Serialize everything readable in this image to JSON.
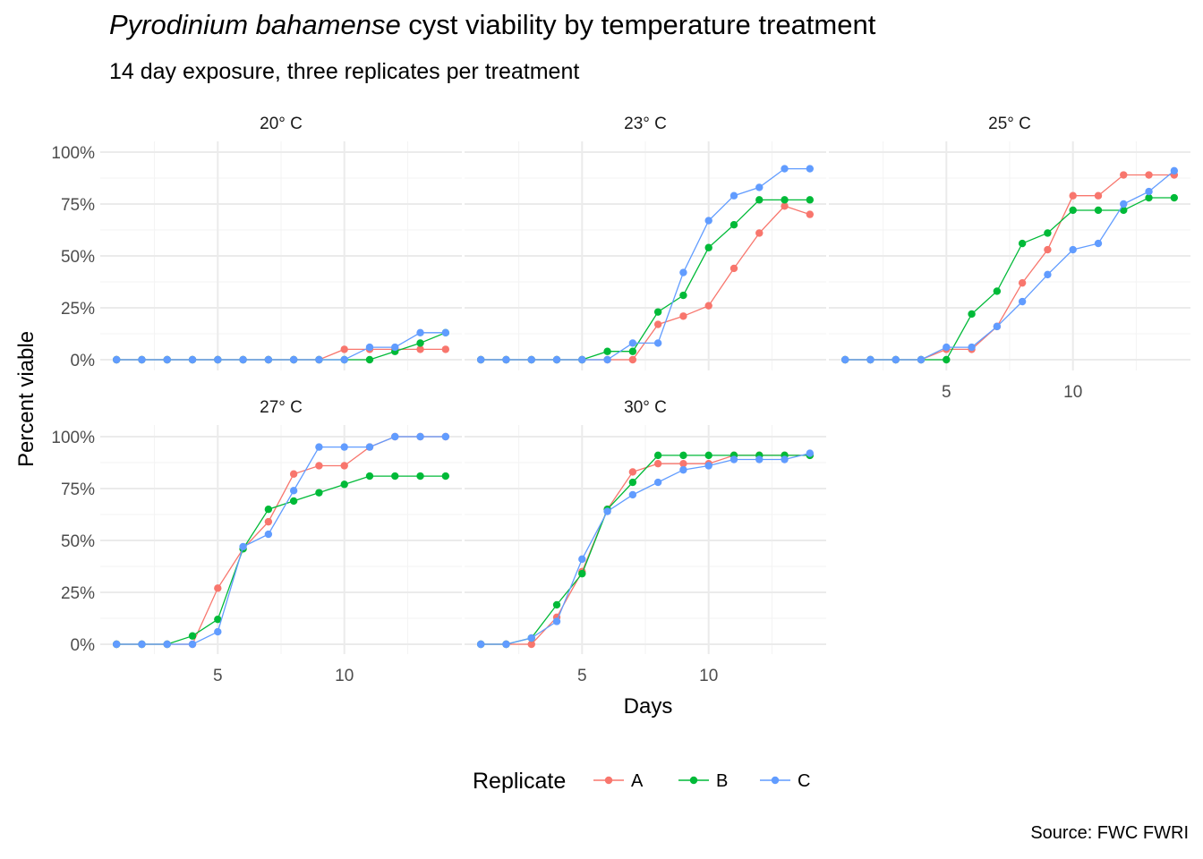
{
  "title": {
    "italic": "Pyrodinium bahamense",
    "rest": " cyst viability by temperature treatment"
  },
  "subtitle": "14 day exposure, three replicates per treatment",
  "caption": "Source: FWC FWRI",
  "chart_data": {
    "type": "line",
    "facet_by": "temperature",
    "xlabel": "Days",
    "ylabel": "Percent viable",
    "xlim": [
      1,
      14
    ],
    "ylim": [
      0,
      1
    ],
    "x_ticks": [
      5,
      10
    ],
    "y_ticks": [
      0,
      0.25,
      0.5,
      0.75,
      1.0
    ],
    "y_tick_labels": [
      "0%",
      "25%",
      "50%",
      "75%",
      "100%"
    ],
    "grid": true,
    "legend": {
      "title": "Replicate",
      "position": "bottom",
      "entries": [
        "A",
        "B",
        "C"
      ]
    },
    "colors": {
      "A": "#F8766D",
      "B": "#00BA38",
      "C": "#619CFF"
    },
    "x": [
      1,
      2,
      3,
      4,
      5,
      6,
      7,
      8,
      9,
      10,
      11,
      12,
      13,
      14
    ],
    "panels": [
      {
        "label": "20° C",
        "series": [
          {
            "name": "A",
            "values": [
              0,
              0,
              0,
              0,
              0,
              0,
              0,
              0,
              0,
              0.05,
              0.05,
              0.05,
              0.05,
              0.05
            ]
          },
          {
            "name": "B",
            "values": [
              0,
              0,
              0,
              0,
              0,
              0,
              0,
              0,
              0,
              0,
              0,
              0.04,
              0.08,
              0.13
            ]
          },
          {
            "name": "C",
            "values": [
              0,
              0,
              0,
              0,
              0,
              0,
              0,
              0,
              0,
              0,
              0.06,
              0.06,
              0.13,
              0.13
            ]
          }
        ]
      },
      {
        "label": "23° C",
        "series": [
          {
            "name": "A",
            "values": [
              0,
              0,
              0,
              0,
              0,
              0,
              0,
              0.17,
              0.21,
              0.26,
              0.44,
              0.61,
              0.74,
              0.7
            ]
          },
          {
            "name": "B",
            "values": [
              0,
              0,
              0,
              0,
              0,
              0.04,
              0.04,
              0.23,
              0.31,
              0.54,
              0.65,
              0.77,
              0.77,
              0.77
            ]
          },
          {
            "name": "C",
            "values": [
              0,
              0,
              0,
              0,
              0,
              0,
              0.08,
              0.08,
              0.42,
              0.67,
              0.79,
              0.83,
              0.92,
              0.92
            ]
          }
        ]
      },
      {
        "label": "25° C",
        "series": [
          {
            "name": "A",
            "values": [
              0,
              0,
              0,
              0,
              0.05,
              0.05,
              0.16,
              0.37,
              0.53,
              0.79,
              0.79,
              0.89,
              0.89,
              0.89
            ]
          },
          {
            "name": "B",
            "values": [
              0,
              0,
              0,
              0,
              0,
              0.22,
              0.33,
              0.56,
              0.61,
              0.72,
              0.72,
              0.72,
              0.78,
              0.78
            ]
          },
          {
            "name": "C",
            "values": [
              0,
              0,
              0,
              0,
              0.06,
              0.06,
              0.16,
              0.28,
              0.41,
              0.53,
              0.56,
              0.75,
              0.81,
              0.91
            ]
          }
        ]
      },
      {
        "label": "27° C",
        "series": [
          {
            "name": "A",
            "values": [
              0,
              0,
              0,
              0,
              0.27,
              0.46,
              0.59,
              0.82,
              0.86,
              0.86,
              0.95,
              1.0,
              1.0,
              1.0
            ]
          },
          {
            "name": "B",
            "values": [
              0,
              0,
              0,
              0.04,
              0.12,
              0.46,
              0.65,
              0.69,
              0.73,
              0.77,
              0.81,
              0.81,
              0.81,
              0.81
            ]
          },
          {
            "name": "C",
            "values": [
              0,
              0,
              0,
              0,
              0.06,
              0.47,
              0.53,
              0.74,
              0.95,
              0.95,
              0.95,
              1.0,
              1.0,
              1.0
            ]
          }
        ]
      },
      {
        "label": "30° C",
        "series": [
          {
            "name": "A",
            "values": [
              0,
              0,
              0,
              0.13,
              0.35,
              0.65,
              0.83,
              0.87,
              0.87,
              0.87,
              0.91,
              0.91,
              0.91,
              0.91
            ]
          },
          {
            "name": "B",
            "values": [
              0,
              0,
              0.03,
              0.19,
              0.34,
              0.65,
              0.78,
              0.91,
              0.91,
              0.91,
              0.91,
              0.91,
              0.91,
              0.91
            ]
          },
          {
            "name": "C",
            "values": [
              0,
              0,
              0.03,
              0.11,
              0.41,
              0.64,
              0.72,
              0.78,
              0.84,
              0.86,
              0.89,
              0.89,
              0.89,
              0.92
            ]
          }
        ]
      }
    ]
  }
}
